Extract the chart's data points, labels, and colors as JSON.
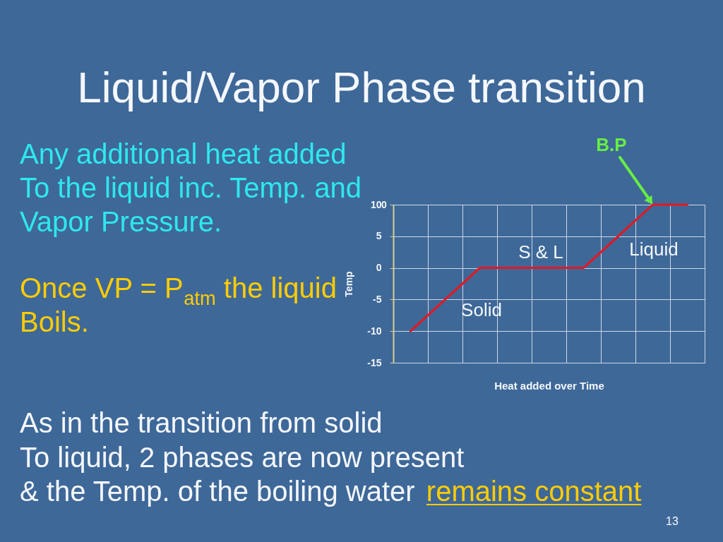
{
  "chart_data": {
    "type": "line",
    "title": "Liquid/Vapor Phase transition",
    "xlabel": "Heat added over Time",
    "ylabel": "Temp",
    "categories": [
      null,
      null,
      null,
      null,
      null,
      null,
      null,
      null,
      null
    ],
    "values": [
      -10,
      -5,
      0,
      0,
      0,
      0,
      5,
      10,
      10
    ],
    "color": "#e8161e",
    "ylim": [
      -15,
      10
    ],
    "yticks": [
      -15,
      -10,
      -5,
      0,
      5,
      10
    ],
    "grid": true,
    "tick_labels": "y",
    "annotations": [
      "Any additional heat added\nTo the liquid inc. Temp. and\nVapor Pressure.",
      "Once VP = P$_{atm}$ the liquid\nBoils.",
      "As in the transition from solid\nTo liquid, 2 phases are now present",
      "& the Temp. of the boiling water",
      "remains constant",
      "Solid",
      "S & L",
      "Liquid",
      "B.P",
      "0",
      "13"
    ]
  }
}
